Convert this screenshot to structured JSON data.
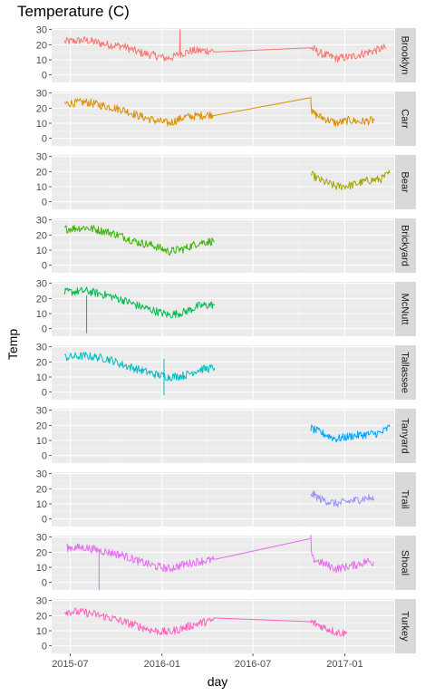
{
  "chart_data": {
    "type": "line",
    "title": "Temperature (C)",
    "xlabel": "day",
    "ylabel": "Temp",
    "ylim": [
      -5,
      31
    ],
    "y_ticks": [
      0,
      10,
      20,
      30
    ],
    "x_ticks": [
      {
        "label": "2015-07",
        "date": "2015-07-01"
      },
      {
        "label": "2016-01",
        "date": "2016-01-01"
      },
      {
        "label": "2016-07",
        "date": "2016-07-01"
      },
      {
        "label": "2017-01",
        "date": "2017-01-01"
      }
    ],
    "xlim": [
      "2015-05-25",
      "2017-04-10"
    ],
    "grid": true,
    "legend": "none (facet strips on right)",
    "series": [
      {
        "name": "Brooklyn",
        "color": "#F8766D",
        "points": [
          [
            "2015-06-20",
            22
          ],
          [
            "2015-08-01",
            23
          ],
          [
            "2015-09-15",
            20
          ],
          [
            "2015-10-15",
            19
          ],
          [
            "2015-11-15",
            15
          ],
          [
            "2015-12-15",
            13
          ],
          [
            "2016-01-10",
            11
          ],
          [
            "2016-01-25",
            12
          ],
          [
            "2016-02-05",
            14
          ],
          [
            "2016-02-06",
            28
          ],
          [
            "2016-02-07",
            14
          ],
          [
            "2016-03-01",
            16
          ],
          [
            "2016-04-15",
            16
          ],
          [
            "2016-10-25",
            18
          ],
          [
            "2016-11-15",
            14
          ],
          [
            "2016-12-15",
            11
          ],
          [
            "2017-01-15",
            12
          ],
          [
            "2017-02-15",
            15
          ],
          [
            "2017-03-25",
            18
          ]
        ],
        "spikes": [
          [
            "2016-02-06",
            28
          ]
        ]
      },
      {
        "name": "Carr",
        "color": "#D89000",
        "points": [
          [
            "2015-06-20",
            23
          ],
          [
            "2015-08-01",
            24
          ],
          [
            "2015-09-15",
            21
          ],
          [
            "2015-10-15",
            19
          ],
          [
            "2015-11-15",
            15
          ],
          [
            "2015-12-15",
            12
          ],
          [
            "2016-01-15",
            10
          ],
          [
            "2016-02-15",
            14
          ],
          [
            "2016-03-15",
            15
          ],
          [
            "2016-04-15",
            16
          ],
          [
            "2016-10-25",
            27
          ],
          [
            "2016-10-27",
            17
          ],
          [
            "2016-11-15",
            14
          ],
          [
            "2016-12-15",
            10
          ],
          [
            "2017-01-10",
            12
          ],
          [
            "2017-02-01",
            11
          ],
          [
            "2017-03-01",
            12
          ]
        ],
        "spikes": []
      },
      {
        "name": "Bear",
        "color": "#A3A500",
        "points": [
          [
            "2016-10-25",
            18
          ],
          [
            "2016-11-15",
            14
          ],
          [
            "2016-12-15",
            10
          ],
          [
            "2017-01-15",
            11
          ],
          [
            "2017-02-15",
            14
          ],
          [
            "2017-03-15",
            15
          ],
          [
            "2017-04-01",
            19
          ]
        ],
        "spikes": []
      },
      {
        "name": "Brickyard",
        "color": "#39B600",
        "points": [
          [
            "2015-06-20",
            24
          ],
          [
            "2015-08-01",
            25
          ],
          [
            "2015-09-15",
            22
          ],
          [
            "2015-10-15",
            19
          ],
          [
            "2015-11-15",
            15
          ],
          [
            "2015-12-15",
            13
          ],
          [
            "2016-01-15",
            9
          ],
          [
            "2016-02-15",
            11
          ],
          [
            "2016-03-15",
            15
          ],
          [
            "2016-04-15",
            16
          ]
        ],
        "spikes": []
      },
      {
        "name": "McNutt",
        "color": "#00BB4E",
        "points": [
          [
            "2015-06-20",
            24
          ],
          [
            "2015-08-01",
            25
          ],
          [
            "2015-09-15",
            22
          ],
          [
            "2015-10-15",
            19
          ],
          [
            "2015-11-15",
            15
          ],
          [
            "2015-12-15",
            12
          ],
          [
            "2016-01-15",
            9
          ],
          [
            "2016-02-15",
            11
          ],
          [
            "2016-03-15",
            15
          ],
          [
            "2016-04-15",
            16
          ]
        ],
        "spikes": [
          [
            "2015-08-03",
            -3
          ]
        ]
      },
      {
        "name": "Tallassee",
        "color": "#00BFC4",
        "points": [
          [
            "2015-06-20",
            23
          ],
          [
            "2015-08-01",
            24
          ],
          [
            "2015-09-15",
            22
          ],
          [
            "2015-10-15",
            18
          ],
          [
            "2015-11-15",
            15
          ],
          [
            "2015-12-15",
            12
          ],
          [
            "2016-01-15",
            10
          ],
          [
            "2016-02-15",
            11
          ],
          [
            "2016-03-15",
            15
          ],
          [
            "2016-04-15",
            16
          ]
        ],
        "spikes": [
          [
            "2016-01-05",
            -2
          ]
        ]
      },
      {
        "name": "Tanyard",
        "color": "#00A5FF",
        "points": [
          [
            "2016-10-25",
            18
          ],
          [
            "2016-11-15",
            15
          ],
          [
            "2016-12-15",
            11
          ],
          [
            "2017-01-15",
            13
          ],
          [
            "2017-02-15",
            14
          ],
          [
            "2017-03-15",
            15
          ],
          [
            "2017-04-01",
            19
          ]
        ],
        "spikes": []
      },
      {
        "name": "Trail",
        "color": "#9590FF",
        "points": [
          [
            "2016-10-25",
            17
          ],
          [
            "2016-11-15",
            13
          ],
          [
            "2016-12-15",
            10
          ],
          [
            "2017-01-15",
            12
          ],
          [
            "2017-02-15",
            14
          ],
          [
            "2017-03-01",
            13
          ]
        ],
        "spikes": []
      },
      {
        "name": "Shoal",
        "color": "#E76BF3",
        "points": [
          [
            "2015-06-25",
            23
          ],
          [
            "2015-08-01",
            23
          ],
          [
            "2015-09-15",
            20
          ],
          [
            "2015-10-15",
            18
          ],
          [
            "2015-11-15",
            14
          ],
          [
            "2015-12-15",
            11
          ],
          [
            "2016-01-15",
            9
          ],
          [
            "2016-02-15",
            12
          ],
          [
            "2016-03-15",
            14
          ],
          [
            "2016-04-15",
            15
          ],
          [
            "2016-10-25",
            29
          ],
          [
            "2016-10-27",
            16
          ],
          [
            "2016-11-15",
            13
          ],
          [
            "2016-12-15",
            9
          ],
          [
            "2017-01-15",
            11
          ],
          [
            "2017-02-15",
            14
          ],
          [
            "2017-03-01",
            13
          ]
        ],
        "spikes": [
          [
            "2015-08-28",
            -5
          ]
        ]
      },
      {
        "name": "Turkey",
        "color": "#FF62BC",
        "points": [
          [
            "2015-06-20",
            23
          ],
          [
            "2015-08-01",
            22
          ],
          [
            "2015-09-15",
            19
          ],
          [
            "2015-10-15",
            16
          ],
          [
            "2015-11-15",
            13
          ],
          [
            "2015-12-15",
            10
          ],
          [
            "2016-01-15",
            9
          ],
          [
            "2016-02-15",
            12
          ],
          [
            "2016-03-15",
            15
          ],
          [
            "2016-04-15",
            17
          ],
          [
            "2016-10-25",
            16
          ],
          [
            "2016-11-15",
            13
          ],
          [
            "2016-12-15",
            9
          ],
          [
            "2017-01-05",
            8
          ]
        ],
        "spikes": []
      }
    ]
  }
}
